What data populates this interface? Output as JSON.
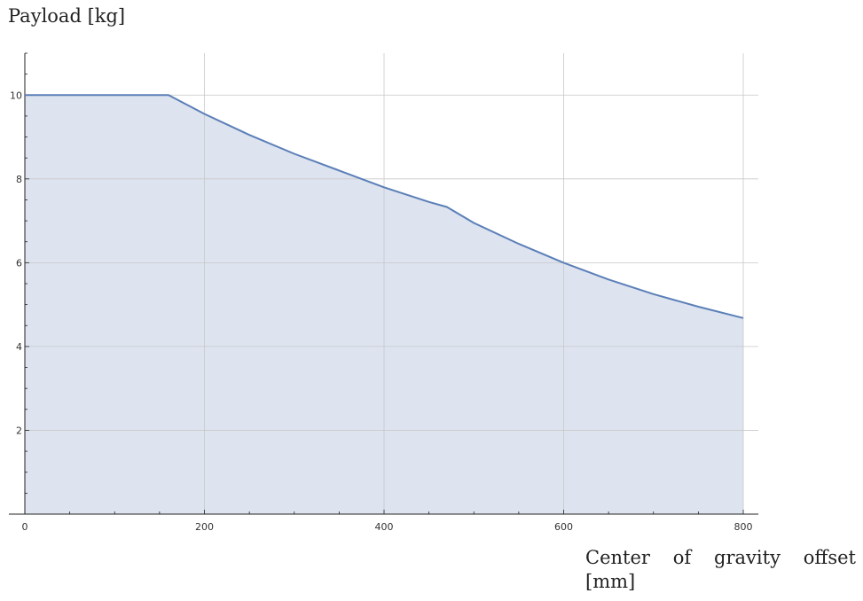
{
  "chart_data": {
    "type": "area",
    "xlabel": "Center of gravity offset [mm]",
    "ylabel": "Payload [kg]",
    "xlim": [
      0,
      800
    ],
    "ylim": [
      0,
      11
    ],
    "x_ticks": [
      0,
      200,
      400,
      600,
      800
    ],
    "y_ticks": [
      2,
      4,
      6,
      8,
      10
    ],
    "grid": true,
    "series": [
      {
        "x": [
          0,
          160,
          200,
          250,
          300,
          350,
          400,
          450,
          470,
          500,
          550,
          600,
          650,
          700,
          750,
          800
        ],
        "values": [
          10,
          10,
          9.55,
          9.05,
          8.6,
          8.2,
          7.8,
          7.45,
          7.33,
          6.95,
          6.45,
          6.0,
          5.6,
          5.25,
          4.95,
          4.68
        ]
      }
    ]
  },
  "colors": {
    "line": "#5b7fb8",
    "fill": "#dde3ef",
    "grid": "#c8c8c8",
    "axis": "#222222"
  }
}
